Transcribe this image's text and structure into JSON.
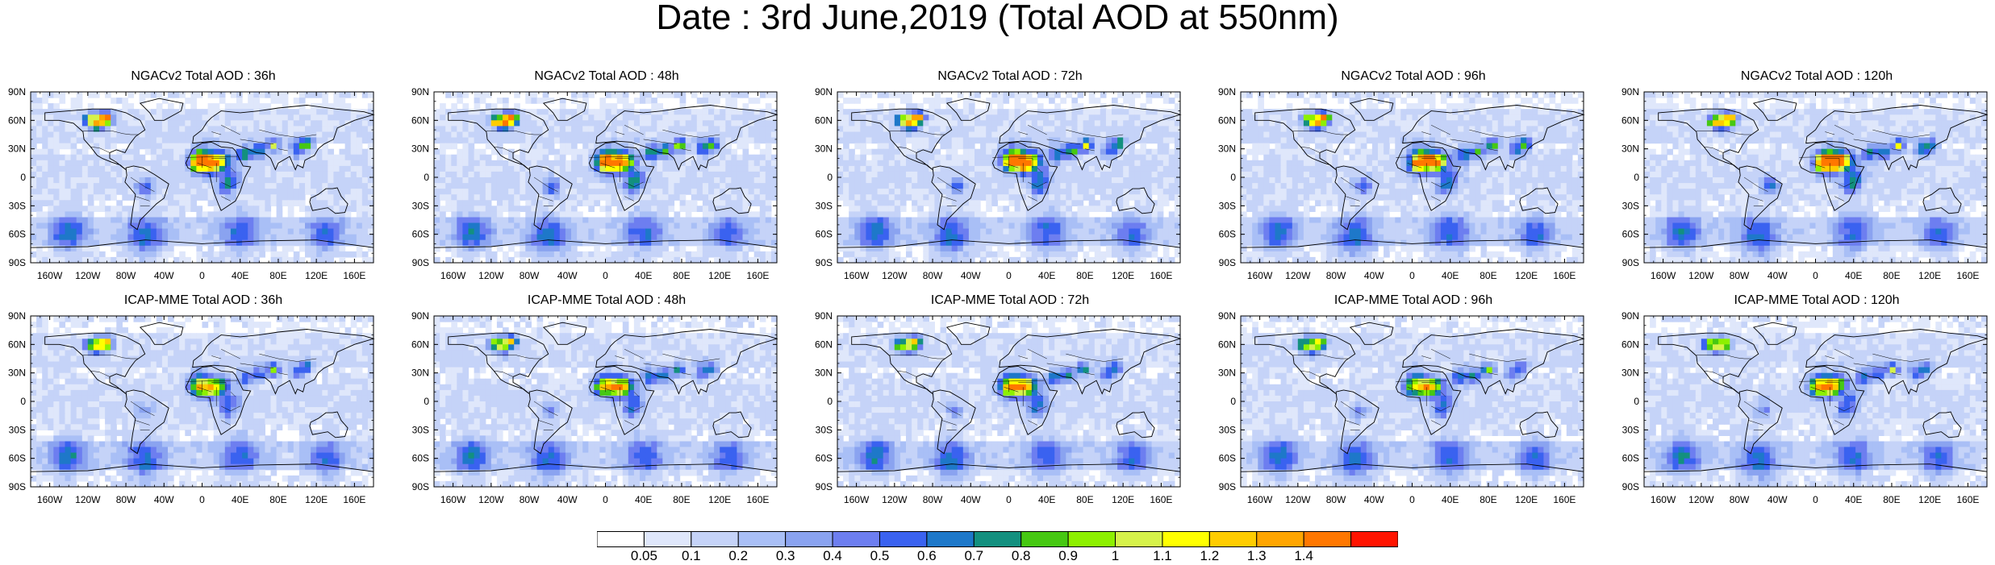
{
  "title": "Date : 3rd June,2019 (Total AOD at 550nm)",
  "panels": [
    {
      "title": "NGACv2 Total AOD : 36h"
    },
    {
      "title": "NGACv2 Total AOD : 48h"
    },
    {
      "title": "NGACv2 Total AOD : 72h"
    },
    {
      "title": "NGACv2 Total AOD : 96h"
    },
    {
      "title": "NGACv2 Total AOD : 120h"
    },
    {
      "title": "ICAP-MME Total AOD : 36h"
    },
    {
      "title": "ICAP-MME Total AOD : 48h"
    },
    {
      "title": "ICAP-MME Total AOD : 72h"
    },
    {
      "title": "ICAP-MME Total AOD : 96h"
    },
    {
      "title": "ICAP-MME Total AOD : 120h"
    }
  ],
  "map_axes": {
    "lat_labels": [
      "90N",
      "60N",
      "30N",
      "0",
      "30S",
      "60S",
      "90S"
    ],
    "lon_labels": [
      "160W",
      "120W",
      "80W",
      "40W",
      "0",
      "40E",
      "80E",
      "120E",
      "160E"
    ]
  },
  "colorbar": {
    "labels": [
      "0.05",
      "0.1",
      "0.2",
      "0.3",
      "0.4",
      "0.5",
      "0.6",
      "0.7",
      "0.8",
      "0.9",
      "1",
      "1.1",
      "1.2",
      "1.3",
      "1.4"
    ],
    "colors": [
      "#ffffff",
      "#dfe7fb",
      "#c5d3f8",
      "#a9bff6",
      "#8aa3f0",
      "#6d7ef0",
      "#3a62f0",
      "#1e78c9",
      "#13907f",
      "#46c812",
      "#8df000",
      "#d6f24a",
      "#ffff00",
      "#ffcc00",
      "#ffa500",
      "#ff7700",
      "#ff1400"
    ]
  }
}
